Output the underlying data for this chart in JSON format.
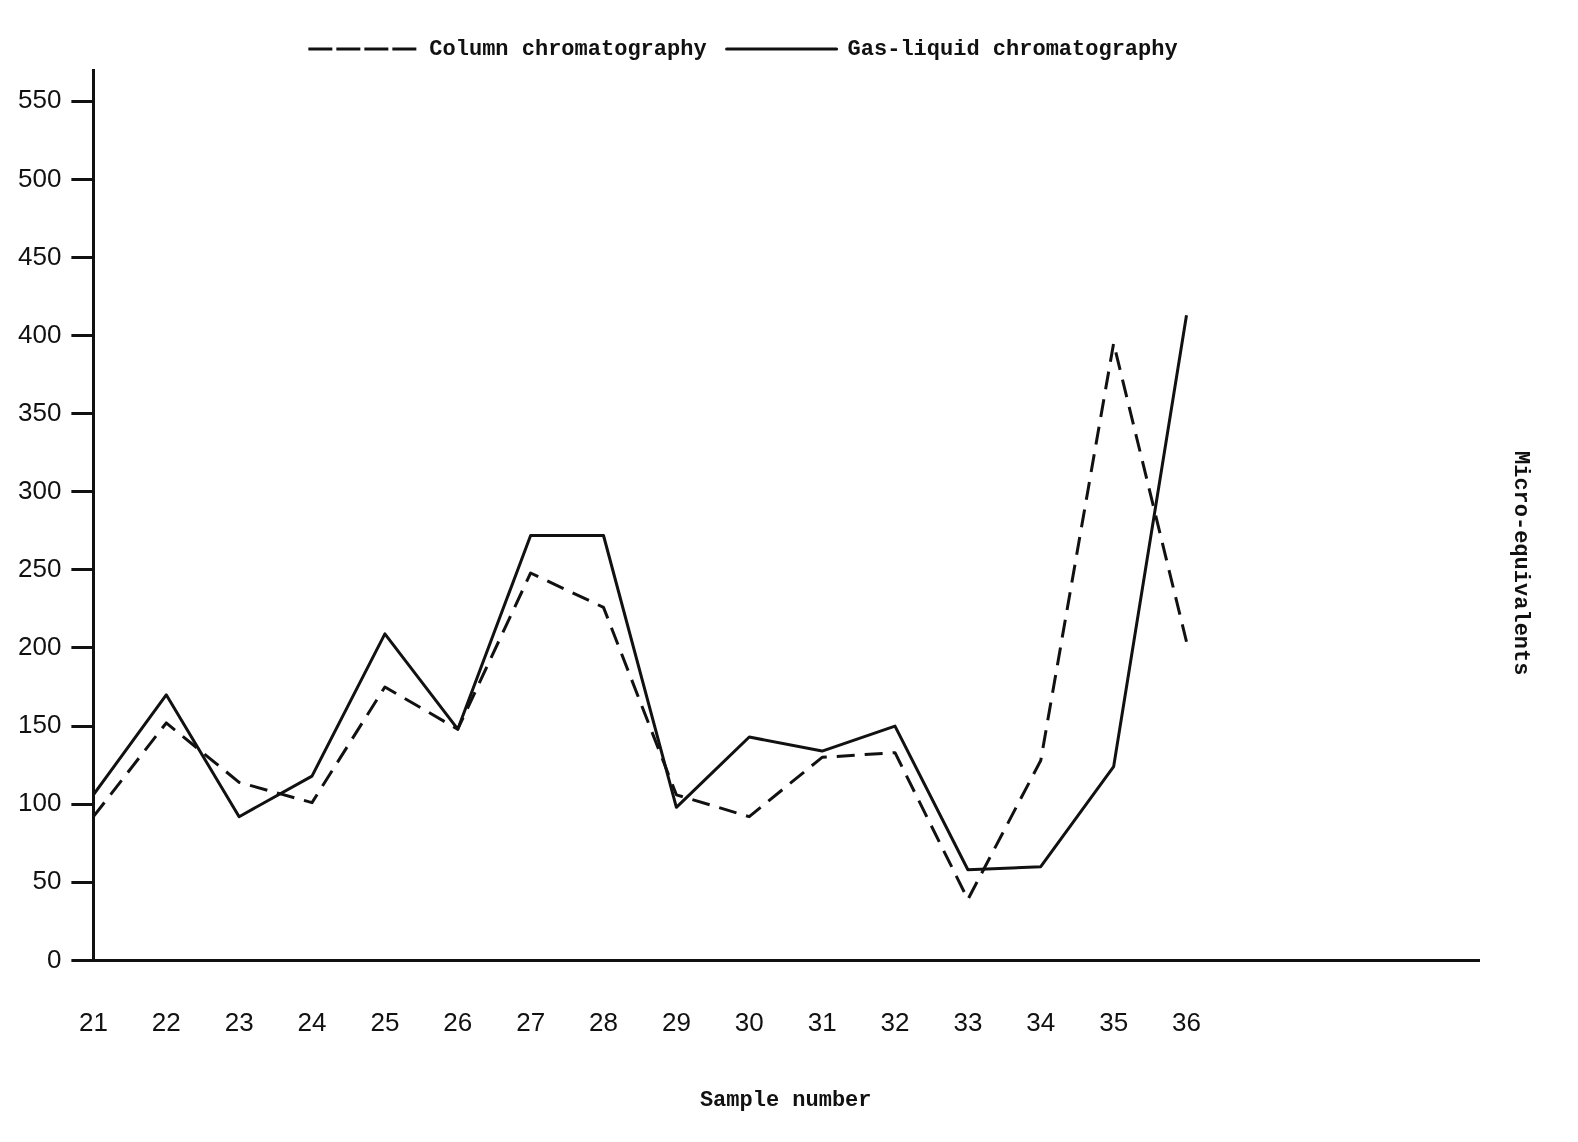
{
  "chart_data": {
    "type": "line",
    "xlabel": "Sample number",
    "ylabel": "Micro-equivalents",
    "x": [
      21,
      22,
      23,
      24,
      25,
      26,
      27,
      28,
      29,
      30,
      31,
      32,
      33,
      34,
      35,
      36
    ],
    "series": [
      {
        "name": "Column chromatography",
        "color": "#111111",
        "line_style": "dashed",
        "values": [
          92,
          152,
          114,
          101,
          175,
          148,
          248,
          226,
          106,
          92,
          130,
          133,
          39,
          128,
          395,
          204
        ]
      },
      {
        "name": "Gas-liquid chromatography",
        "color": "#111111",
        "line_style": "solid",
        "values": [
          106,
          170,
          92,
          118,
          209,
          148,
          272,
          272,
          98,
          143,
          134,
          150,
          58,
          60,
          124,
          413
        ]
      }
    ],
    "xlim": [
      21,
      40
    ],
    "xticks": [
      21,
      22,
      23,
      24,
      25,
      26,
      27,
      28,
      29,
      30,
      31,
      32,
      33,
      34,
      35,
      36
    ],
    "ylim": [
      0,
      570
    ],
    "yticks": [
      0,
      50,
      100,
      150,
      200,
      250,
      300,
      350,
      400,
      450,
      500,
      550
    ],
    "grid": false,
    "legend": "top",
    "marker": "none"
  }
}
